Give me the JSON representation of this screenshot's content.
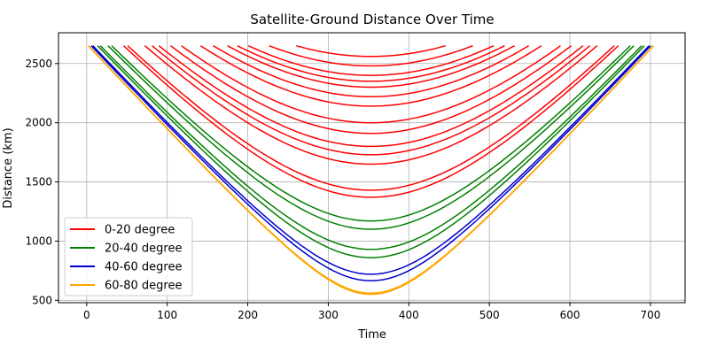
{
  "chart_data": {
    "type": "line",
    "title": "Satellite-Ground Distance Over Time",
    "xlabel": "Time",
    "ylabel": "Distance (km)",
    "xlim": [
      -35,
      743
    ],
    "ylim": [
      480,
      2760
    ],
    "xticks": [
      0,
      100,
      200,
      300,
      400,
      500,
      600,
      700
    ],
    "yticks": [
      500,
      1000,
      1500,
      2000,
      2500
    ],
    "grid": true,
    "legend_position": "lower-left",
    "center_time": 353,
    "cutoff_distance": 2650,
    "series": [
      {
        "name": "0-20 degree",
        "color": "#ff0000",
        "min_distances": [
          2650,
          2560,
          2480,
          2400,
          2350,
          2300,
          2220,
          2140,
          2000,
          1910,
          1800,
          1730,
          1650,
          1430,
          1370
        ]
      },
      {
        "name": "20-40 degree",
        "color": "#008000",
        "min_distances": [
          1170,
          1100,
          930,
          860
        ]
      },
      {
        "name": "40-60 degree",
        "color": "#0000cc",
        "min_distances": [
          720,
          665
        ]
      },
      {
        "name": "60-80 degree",
        "color": "#ffa500",
        "min_distances": [
          560,
          550
        ]
      }
    ]
  }
}
